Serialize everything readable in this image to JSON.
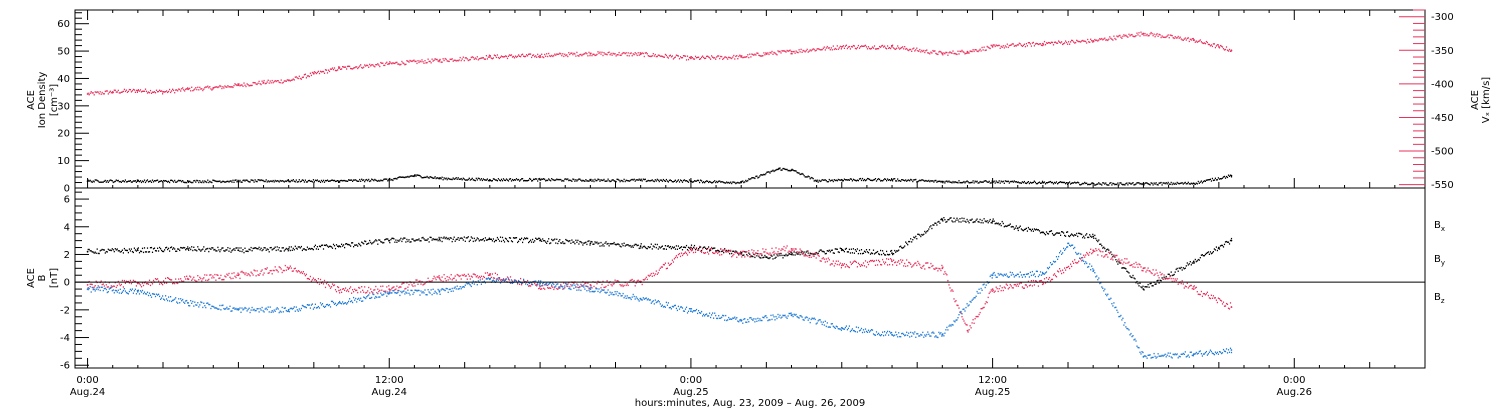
{
  "chart_data": [
    {
      "type": "scatter",
      "panel": "top",
      "left_ylabel": [
        "ACE",
        "Ion Density",
        "[cm⁻³]"
      ],
      "right_ylabel": [
        "ACE",
        "Vₓ [km/s]"
      ],
      "left_ylim": [
        0,
        65
      ],
      "left_yticks": [
        0,
        10,
        20,
        30,
        40,
        50,
        60
      ],
      "right_ylim": [
        -555,
        -290
      ],
      "right_yticks": [
        -550,
        -500,
        -450,
        -400,
        -350,
        -300
      ],
      "colors": {
        "density": "#000000",
        "vx": "#e8325c"
      },
      "series": [
        {
          "name": "Ion Density",
          "axis": "left",
          "color": "#000000",
          "x": [
            0,
            2,
            4,
            6,
            8,
            10,
            12,
            13,
            14,
            16,
            18,
            20,
            22,
            24,
            26,
            27.5,
            28,
            29,
            30,
            32,
            34,
            36,
            38,
            40,
            42,
            44,
            45.5
          ],
          "y": [
            2.5,
            2.5,
            2.4,
            2.5,
            2.6,
            2.5,
            3.0,
            4.5,
            3.5,
            3.0,
            3.0,
            2.8,
            2.8,
            2.5,
            2.0,
            7.0,
            6.5,
            2.5,
            3.0,
            3.0,
            2.3,
            2.2,
            2.0,
            1.5,
            1.5,
            1.7,
            4.5
          ]
        },
        {
          "name": "Vx",
          "axis": "right",
          "color": "#e8325c",
          "x": [
            0,
            1,
            2,
            3,
            4,
            5,
            6,
            7,
            8,
            9,
            10,
            12,
            14,
            16,
            18,
            20,
            22,
            24,
            26,
            27,
            28,
            30,
            32,
            34,
            35,
            36,
            38,
            40,
            42,
            44,
            45,
            45.5
          ],
          "y": [
            -415,
            -412,
            -410,
            -412,
            -408,
            -406,
            -402,
            -398,
            -395,
            -385,
            -377,
            -370,
            -365,
            -360,
            -358,
            -355,
            -356,
            -362,
            -360,
            -355,
            -352,
            -345,
            -345,
            -355,
            -352,
            -345,
            -340,
            -336,
            -325,
            -335,
            -345,
            -350
          ]
        }
      ]
    },
    {
      "type": "scatter",
      "panel": "bottom",
      "ylabel": [
        "ACE",
        "B",
        "[nT]"
      ],
      "ylim": [
        -6.2,
        6.8
      ],
      "yticks": [
        -6,
        -4,
        -2,
        0,
        2,
        4,
        6
      ],
      "legend": [
        "Bx",
        "By",
        "Bz"
      ],
      "legend_placement": "right",
      "colors": {
        "Bx": "#000000",
        "By": "#1f7ad6",
        "Bz": "#e8325c"
      },
      "series": [
        {
          "name": "Bx",
          "color": "#000000",
          "x": [
            0,
            2,
            4,
            6,
            8,
            10,
            12,
            14,
            16,
            18,
            20,
            22,
            24,
            26,
            27,
            28,
            30,
            32,
            34,
            36,
            37,
            38,
            40,
            42,
            44,
            45,
            45.5
          ],
          "y": [
            2.2,
            2.3,
            2.4,
            2.3,
            2.4,
            2.6,
            3.0,
            3.1,
            3.1,
            3.0,
            2.8,
            2.6,
            2.5,
            2.1,
            1.8,
            2.0,
            2.3,
            2.1,
            4.5,
            4.4,
            3.9,
            3.6,
            3.3,
            -0.5,
            1.5,
            2.5,
            3.0
          ]
        },
        {
          "name": "By",
          "color": "#1f7ad6",
          "x": [
            0,
            2,
            4,
            6,
            8,
            10,
            12,
            14,
            16,
            18,
            20,
            22,
            24,
            26,
            28,
            30,
            32,
            34,
            36,
            38,
            39,
            40,
            42,
            44,
            45.5
          ],
          "y": [
            -0.5,
            -0.7,
            -1.5,
            -2.0,
            -2.0,
            -1.5,
            -0.8,
            -0.7,
            0.2,
            -0.1,
            -0.5,
            -1.2,
            -2.1,
            -2.8,
            -2.4,
            -3.3,
            -3.8,
            -3.8,
            0.5,
            0.6,
            2.8,
            0.8,
            -5.4,
            -5.2,
            -4.9
          ]
        },
        {
          "name": "Bz",
          "color": "#e8325c",
          "x": [
            0,
            2,
            4,
            6,
            8,
            10,
            12,
            14,
            16,
            18,
            20,
            22,
            24,
            26,
            28,
            30,
            32,
            34,
            35,
            36,
            38,
            40,
            42,
            44,
            45.5
          ],
          "y": [
            -0.2,
            -0.1,
            0.2,
            0.5,
            1.0,
            -0.6,
            -0.5,
            0.3,
            0.5,
            -0.3,
            -0.2,
            0.0,
            2.4,
            2.0,
            2.4,
            1.2,
            1.5,
            1.0,
            -3.5,
            -0.5,
            0.0,
            2.3,
            1.0,
            -0.5,
            -1.8
          ]
        }
      ],
      "reference_line": 0
    }
  ],
  "x_axis": {
    "range_hours": [
      -0.5,
      53.2
    ],
    "ticks": [
      {
        "hour": 0,
        "line1": "0:00",
        "line2": "Aug.24"
      },
      {
        "hour": 12,
        "line1": "12:00",
        "line2": "Aug.24"
      },
      {
        "hour": 24,
        "line1": "0:00",
        "line2": "Aug.25"
      },
      {
        "hour": 36,
        "line1": "12:00",
        "line2": "Aug.25"
      },
      {
        "hour": 48,
        "line1": "0:00",
        "line2": "Aug.26"
      }
    ],
    "xlabel": "hours:minutes, Aug. 23, 2009 – Aug. 26, 2009"
  },
  "legend_labels": {
    "bx": {
      "base": "B",
      "sub": "x"
    },
    "by": {
      "base": "B",
      "sub": "y"
    },
    "bz": {
      "base": "B",
      "sub": "z"
    }
  }
}
